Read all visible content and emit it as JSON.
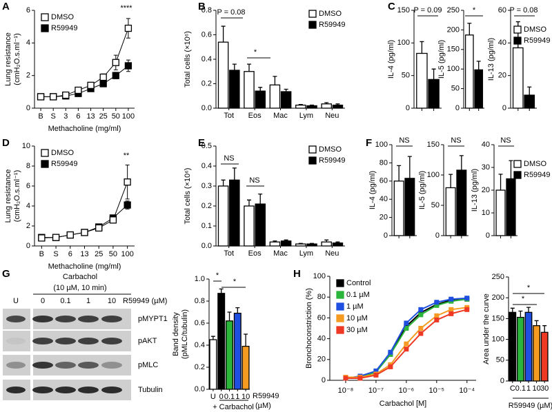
{
  "chart_data": [
    {
      "panel": "A",
      "type": "line",
      "categories": [
        "B",
        "S",
        "3",
        "6",
        "13",
        "25",
        "50",
        "100"
      ],
      "series": [
        {
          "name": "DMSO",
          "color": "#ffffff",
          "values": [
            0.7,
            0.7,
            0.8,
            1.1,
            1.4,
            1.9,
            2.8,
            4.9
          ],
          "errors": [
            0.15,
            0.15,
            0.15,
            0.15,
            0.15,
            0.2,
            0.45,
            0.6
          ]
        },
        {
          "name": "R59949",
          "color": "#000000",
          "values": [
            0.7,
            0.7,
            0.75,
            0.9,
            1.2,
            1.5,
            2.0,
            2.6
          ],
          "errors": [
            0.1,
            0.1,
            0.1,
            0.1,
            0.1,
            0.15,
            0.2,
            0.35
          ]
        }
      ],
      "ylim": [
        0,
        6
      ],
      "yticks": [
        0,
        2,
        4,
        6
      ],
      "ylabel": [
        "Lung resistance",
        "(cmH₂O.s.ml⁻¹)"
      ],
      "xlabel": "Methacholine (mg/ml)",
      "legend": "upper left",
      "annotations": [
        "****"
      ]
    },
    {
      "panel": "B",
      "type": "bar",
      "categories": [
        "Tot",
        "Eos",
        "Mac",
        "Lym",
        "Neu"
      ],
      "series": [
        {
          "name": "DMSO",
          "color": "#ffffff",
          "values": [
            0.54,
            0.3,
            0.19,
            0.025,
            0.035
          ],
          "errors": [
            0.13,
            0.06,
            0.07,
            0.005,
            0.01
          ]
        },
        {
          "name": "R59949",
          "color": "#000000",
          "values": [
            0.31,
            0.14,
            0.135,
            0.02,
            0.025
          ],
          "errors": [
            0.05,
            0.03,
            0.02,
            0.005,
            0.01
          ]
        }
      ],
      "ylim": [
        0,
        0.8
      ],
      "yticks": [
        {
          "value": 0,
          "label": "0.0"
        },
        0.2,
        0.4,
        0.6,
        0.8
      ],
      "ylabel": [
        "Total cells (×10⁶)"
      ],
      "legend": "upper right",
      "annotations": [
        "P = 0.08",
        "*"
      ]
    },
    {
      "panel": "C",
      "type": "bar",
      "series": [
        {
          "color": "#ffffff",
          "values": [
            84
          ],
          "errors": [
            18
          ]
        },
        {
          "color": "#000000",
          "values": [
            44
          ],
          "errors": [
            16
          ]
        }
      ],
      "ylim": [
        0,
        150
      ],
      "yticks": [
        0,
        50,
        100,
        150
      ],
      "ylabel": [
        "IL-4 (pg/ml)"
      ],
      "annotations": [
        "P = 0.09"
      ]
    },
    {
      "type": "bar",
      "series": [
        {
          "color": "#ffffff",
          "values": [
            187
          ],
          "errors": [
            30
          ]
        },
        {
          "color": "#000000",
          "values": [
            98
          ],
          "errors": [
            22
          ]
        }
      ],
      "ylim": [
        0,
        250
      ],
      "yticks": [
        0,
        50,
        100,
        150,
        200,
        250
      ],
      "ylabel": [
        "IL-5 (pg/ml)"
      ],
      "annotations": [
        "*"
      ]
    },
    {
      "type": "bar",
      "series": [
        {
          "name": "DMSO",
          "color": "#ffffff",
          "values": [
            37
          ],
          "errors": [
            16
          ]
        },
        {
          "name": "R59949",
          "color": "#000000",
          "values": [
            8
          ],
          "errors": [
            5
          ]
        }
      ],
      "ylim": [
        0,
        60
      ],
      "yticks": [
        0,
        20,
        40,
        60
      ],
      "ylabel": [
        "IL-13 (pg/ml)"
      ],
      "legend": "right",
      "annotations": [
        "P = 0.08"
      ]
    },
    {
      "panel": "D",
      "type": "line",
      "categories": [
        "B",
        "S",
        "6",
        "13",
        "25",
        "50",
        "100"
      ],
      "series": [
        {
          "name": "DMSO",
          "color": "#ffffff",
          "values": [
            0.8,
            0.85,
            1.1,
            1.35,
            1.8,
            2.6,
            6.4
          ],
          "errors": [
            0.15,
            0.15,
            0.15,
            0.15,
            0.2,
            0.3,
            1.7
          ]
        },
        {
          "name": "R59949",
          "color": "#000000",
          "values": [
            0.85,
            0.85,
            1.1,
            1.35,
            1.9,
            2.8,
            4.1
          ],
          "errors": [
            0.15,
            0.1,
            0.1,
            0.1,
            0.2,
            0.25,
            0.4
          ]
        }
      ],
      "ylim": [
        0,
        10
      ],
      "yticks": [
        0,
        2,
        4,
        6,
        8,
        10
      ],
      "ylabel": [
        "Lung resistance",
        "(cmH₂O.s.ml⁻¹)"
      ],
      "xlabel": "Methacholine (mg/ml)",
      "legend": "upper left",
      "annotations": [
        "**"
      ]
    },
    {
      "panel": "E",
      "type": "bar",
      "categories": [
        "Tot",
        "Eos",
        "Mac",
        "Lym",
        "Neu"
      ],
      "series": [
        {
          "name": "DMSO",
          "color": "#ffffff",
          "values": [
            0.3,
            0.2,
            0.02,
            0.01,
            0.02
          ],
          "errors": [
            0.03,
            0.03,
            0.005,
            0.003,
            0.01
          ]
        },
        {
          "name": "R59949",
          "color": "#000000",
          "values": [
            0.33,
            0.21,
            0.025,
            0.01,
            0.015
          ],
          "errors": [
            0.06,
            0.05,
            0.005,
            0.003,
            0.005
          ]
        }
      ],
      "ylim": [
        0,
        0.5
      ],
      "yticks": [
        {
          "value": 0,
          "label": "0.0"
        },
        0.1,
        0.2,
        0.3,
        0.4,
        0.5
      ],
      "ylabel": [
        "Total cells (×10⁶)"
      ],
      "legend": "upper right",
      "annotations": [
        "NS",
        "NS"
      ]
    },
    {
      "panel": "F",
      "type": "bar",
      "series": [
        {
          "color": "#ffffff",
          "values": [
            60
          ],
          "errors": [
            17
          ]
        },
        {
          "color": "#000000",
          "values": [
            63
          ],
          "errors": [
            24
          ]
        }
      ],
      "ylim": [
        0,
        100
      ],
      "yticks": [
        0,
        20,
        40,
        60,
        80,
        100
      ],
      "ylabel": [
        "IL-4 (pg/ml)"
      ],
      "annotations": [
        "NS"
      ]
    },
    {
      "type": "bar",
      "series": [
        {
          "color": "#ffffff",
          "values": [
            79
          ],
          "errors": [
            22
          ]
        },
        {
          "color": "#000000",
          "values": [
            108
          ],
          "errors": [
            24
          ]
        }
      ],
      "ylim": [
        0,
        150
      ],
      "yticks": [
        0,
        50,
        100,
        150
      ],
      "ylabel": [
        "IL-5 (pg/ml)"
      ],
      "annotations": [
        "NS"
      ]
    },
    {
      "type": "bar",
      "series": [
        {
          "name": "DMSO",
          "color": "#ffffff",
          "values": [
            20
          ],
          "errors": [
            7
          ]
        },
        {
          "name": "R59949",
          "color": "#000000",
          "values": [
            25
          ],
          "errors": [
            8
          ]
        }
      ],
      "ylim": [
        0,
        40
      ],
      "yticks": [
        0,
        10,
        20,
        30,
        40
      ],
      "ylabel": [
        "IL-13 (pg/ml)"
      ],
      "legend": "right",
      "annotations": [
        "NS"
      ]
    },
    {
      "panel": "G",
      "type": "blot",
      "treatment": [
        "Carbachol",
        "(10 µM, 10 min)"
      ],
      "lanes": [
        "U",
        "0",
        "0.1",
        "1",
        "10"
      ],
      "lane_label": "R59949 (µM)",
      "rows": [
        "pMYPT1",
        "pAKT",
        "pMLC",
        "Tubulin"
      ]
    },
    {
      "type": "bar",
      "categories": [
        "U",
        "0",
        "0.1",
        "1",
        "10"
      ],
      "values": [
        0.45,
        0.87,
        0.62,
        0.69,
        0.39
      ],
      "errors": [
        0.03,
        0.04,
        0.08,
        0.05,
        0.11
      ],
      "colors": [
        "#ffffff",
        "#000000",
        "#2bb53a",
        "#1f4fe0",
        "#f59b22"
      ],
      "ylim": [
        0,
        1
      ],
      "yticks": [
        {
          "value": 0,
          "label": "0.0"
        },
        0.2,
        0.4,
        0.6,
        0.8,
        {
          "value": 1,
          "label": "1.0"
        }
      ],
      "ylabel": [
        "Band density",
        "(pMLC/tubulin)"
      ],
      "xnote": "+ Carbachol",
      "xlabel": [
        "R59949",
        "(µM)"
      ],
      "annotations": [
        "*",
        "*"
      ]
    },
    {
      "panel": "H",
      "type": "logline",
      "x": [
        1e-08,
        3e-08,
        1e-07,
        3e-07,
        1e-06,
        3e-06,
        1e-05,
        3e-05,
        0.0001
      ],
      "series": [
        {
          "name": "Control",
          "color": "#000000",
          "values": [
            2,
            3,
            8,
            25,
            52,
            65,
            73,
            77,
            78
          ]
        },
        {
          "name": "0.1 µM",
          "color": "#2bb53a",
          "values": [
            2,
            3,
            8,
            25,
            50,
            63,
            72,
            76,
            78
          ]
        },
        {
          "name": "1 µM",
          "color": "#1f4fe0",
          "values": [
            2,
            4,
            9,
            27,
            55,
            68,
            75,
            78,
            79
          ]
        },
        {
          "name": "10 µM",
          "color": "#f59b22",
          "values": [
            3,
            3,
            6,
            15,
            35,
            50,
            62,
            68,
            70
          ]
        },
        {
          "name": "30 µM",
          "color": "#ee3a24",
          "values": [
            2,
            2,
            5,
            13,
            30,
            45,
            58,
            64,
            68
          ]
        }
      ],
      "xlim": [
        3e-09,
        0.0002
      ],
      "xticks": [
        {
          "value": 1e-08,
          "label": "10⁻⁸"
        },
        {
          "value": 1e-07,
          "label": "10⁻⁷"
        },
        {
          "value": 1e-06,
          "label": "10⁻⁶"
        },
        {
          "value": 1e-05,
          "label": "10⁻⁵"
        },
        {
          "value": 0.0001,
          "label": "10⁻⁴"
        }
      ],
      "ylim": [
        0,
        100
      ],
      "yticks": [
        0,
        20,
        40,
        60,
        80,
        100
      ],
      "ylabel": [
        "Bronchoconstriction (%)"
      ],
      "xlabel": "Carbachol [M]",
      "legend": "upper left"
    },
    {
      "type": "bar",
      "categories": [
        "C",
        "0.1",
        "1",
        "10",
        "30"
      ],
      "values": [
        165,
        153,
        165,
        133,
        117
      ],
      "errors": [
        10,
        15,
        12,
        12,
        16
      ],
      "colors": [
        "#000000",
        "#2bb53a",
        "#1f4fe0",
        "#f59b22",
        "#ee3a24"
      ],
      "ylim": [
        0,
        250
      ],
      "yticks": [
        0,
        50,
        100,
        150,
        200,
        250
      ],
      "ylabel": [
        "Area under the curve"
      ],
      "xlabel": [
        "R59949 (µM)"
      ],
      "annotations": [
        "*",
        "*"
      ]
    }
  ]
}
